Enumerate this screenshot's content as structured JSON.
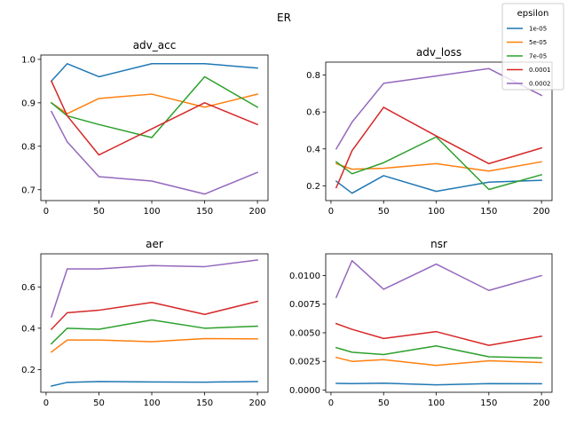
{
  "figure_title": "ER",
  "legend": {
    "title": "epsilon",
    "placement": "top-right",
    "entries": [
      {
        "label": "1e-05",
        "color": "#1f77b4"
      },
      {
        "label": "5e-05",
        "color": "#ff7f0e"
      },
      {
        "label": "7e-05",
        "color": "#2ca02c"
      },
      {
        "label": "0.0001",
        "color": "#d62728"
      },
      {
        "label": "0.0002",
        "color": "#9467bd"
      }
    ]
  },
  "chart_data": [
    {
      "type": "line",
      "title": "adv_acc",
      "xlabel": "",
      "ylabel": "",
      "x": [
        5,
        20,
        50,
        100,
        150,
        200
      ],
      "xlim": [
        -5,
        210
      ],
      "ylim": [
        0.675,
        1.01
      ],
      "xticks": [
        "0",
        "50",
        "100",
        "150",
        "200"
      ],
      "xtick_values": [
        0,
        50,
        100,
        150,
        200
      ],
      "yticks": [
        "0.7",
        "0.8",
        "0.9",
        "1.0"
      ],
      "ytick_values": [
        0.7,
        0.8,
        0.9,
        1.0
      ],
      "grid": false,
      "series": [
        {
          "name": "1e-05",
          "color": "#1f77b4",
          "values": [
            0.95,
            0.99,
            0.96,
            0.99,
            0.99,
            0.98
          ]
        },
        {
          "name": "5e-05",
          "color": "#ff7f0e",
          "values": [
            0.9,
            0.875,
            0.91,
            0.92,
            0.89,
            0.92
          ]
        },
        {
          "name": "7e-05",
          "color": "#2ca02c",
          "values": [
            0.9,
            0.87,
            0.85,
            0.82,
            0.96,
            0.89
          ]
        },
        {
          "name": "0.0001",
          "color": "#d62728",
          "values": [
            0.95,
            0.87,
            0.78,
            0.84,
            0.9,
            0.85
          ]
        },
        {
          "name": "0.0002",
          "color": "#9467bd",
          "values": [
            0.88,
            0.81,
            0.73,
            0.72,
            0.69,
            0.74
          ]
        }
      ]
    },
    {
      "type": "line",
      "title": "adv_loss",
      "xlabel": "",
      "ylabel": "",
      "x": [
        5,
        20,
        50,
        100,
        150,
        200
      ],
      "xlim": [
        -5,
        210
      ],
      "ylim": [
        0.12,
        0.87
      ],
      "xticks": [
        "0",
        "50",
        "100",
        "150",
        "200"
      ],
      "xtick_values": [
        0,
        50,
        100,
        150,
        200
      ],
      "yticks": [
        "0.2",
        "0.4",
        "0.6",
        "0.8"
      ],
      "ytick_values": [
        0.2,
        0.4,
        0.6,
        0.8
      ],
      "grid": false,
      "series": [
        {
          "name": "1e-05",
          "color": "#1f77b4",
          "values": [
            0.225,
            0.16,
            0.255,
            0.17,
            0.22,
            0.23
          ]
        },
        {
          "name": "5e-05",
          "color": "#ff7f0e",
          "values": [
            0.32,
            0.29,
            0.295,
            0.32,
            0.28,
            0.33
          ]
        },
        {
          "name": "7e-05",
          "color": "#2ca02c",
          "values": [
            0.33,
            0.265,
            0.325,
            0.465,
            0.18,
            0.26
          ]
        },
        {
          "name": "0.0001",
          "color": "#d62728",
          "values": [
            0.19,
            0.39,
            0.625,
            0.47,
            0.32,
            0.405
          ]
        },
        {
          "name": "0.0002",
          "color": "#9467bd",
          "values": [
            0.4,
            0.545,
            0.755,
            0.795,
            0.835,
            0.69
          ]
        }
      ]
    },
    {
      "type": "line",
      "title": "aer",
      "xlabel": "",
      "ylabel": "",
      "x": [
        5,
        20,
        50,
        100,
        150,
        200
      ],
      "xlim": [
        -5,
        210
      ],
      "ylim": [
        0.09,
        0.76
      ],
      "xticks": [
        "0",
        "50",
        "100",
        "150",
        "200"
      ],
      "xtick_values": [
        0,
        50,
        100,
        150,
        200
      ],
      "yticks": [
        "0.2",
        "0.4",
        "0.6"
      ],
      "ytick_values": [
        0.2,
        0.4,
        0.6
      ],
      "grid": false,
      "series": [
        {
          "name": "1e-05",
          "color": "#1f77b4",
          "values": [
            0.12,
            0.138,
            0.142,
            0.14,
            0.139,
            0.142
          ]
        },
        {
          "name": "5e-05",
          "color": "#ff7f0e",
          "values": [
            0.285,
            0.343,
            0.343,
            0.335,
            0.35,
            0.348
          ]
        },
        {
          "name": "7e-05",
          "color": "#2ca02c",
          "values": [
            0.325,
            0.4,
            0.395,
            0.44,
            0.4,
            0.41
          ]
        },
        {
          "name": "0.0001",
          "color": "#d62728",
          "values": [
            0.395,
            0.475,
            0.487,
            0.525,
            0.467,
            0.53
          ]
        },
        {
          "name": "0.0002",
          "color": "#9467bd",
          "values": [
            0.455,
            0.687,
            0.687,
            0.703,
            0.698,
            0.73
          ]
        }
      ]
    },
    {
      "type": "line",
      "title": "nsr",
      "xlabel": "",
      "ylabel": "",
      "x": [
        5,
        20,
        50,
        100,
        150,
        200
      ],
      "xlim": [
        -5,
        210
      ],
      "ylim": [
        -0.0002,
        0.0119
      ],
      "xticks": [
        "0",
        "50",
        "100",
        "150",
        "200"
      ],
      "xtick_values": [
        0,
        50,
        100,
        150,
        200
      ],
      "yticks": [
        "0.0000",
        "0.0025",
        "0.0050",
        "0.0075",
        "0.0100"
      ],
      "ytick_values": [
        0.0,
        0.0025,
        0.005,
        0.0075,
        0.01
      ],
      "grid": false,
      "series": [
        {
          "name": "1e-05",
          "color": "#1f77b4",
          "values": [
            0.00058,
            0.00056,
            0.0006,
            0.00045,
            0.00056,
            0.00055
          ]
        },
        {
          "name": "5e-05",
          "color": "#ff7f0e",
          "values": [
            0.00285,
            0.0025,
            0.00265,
            0.00215,
            0.00255,
            0.0024
          ]
        },
        {
          "name": "7e-05",
          "color": "#2ca02c",
          "values": [
            0.0037,
            0.0033,
            0.0031,
            0.00385,
            0.0029,
            0.0028
          ]
        },
        {
          "name": "0.0001",
          "color": "#d62728",
          "values": [
            0.0058,
            0.0053,
            0.0045,
            0.0051,
            0.0039,
            0.0047
          ]
        },
        {
          "name": "0.0002",
          "color": "#9467bd",
          "values": [
            0.0081,
            0.0113,
            0.0088,
            0.011,
            0.0087,
            0.01
          ]
        }
      ]
    }
  ]
}
